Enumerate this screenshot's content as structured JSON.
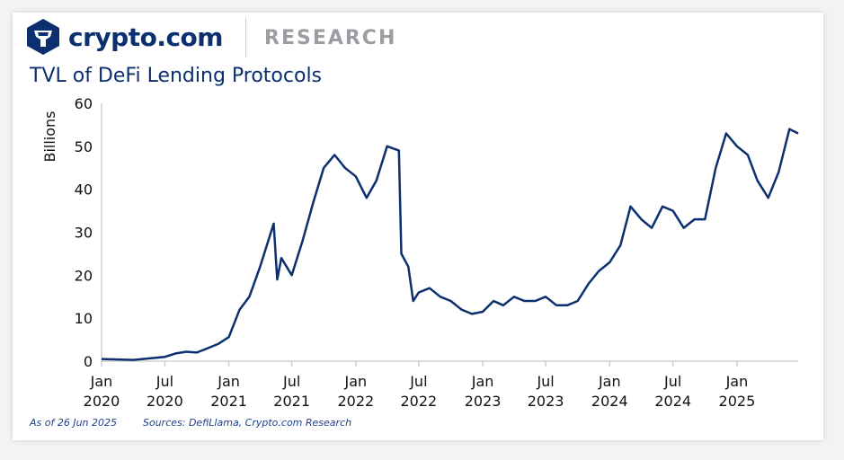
{
  "header": {
    "brand": "crypto.com",
    "section": "RESEARCH",
    "title": "TVL of DeFi Lending Protocols"
  },
  "footer": {
    "as_of": "As of 26 Jun 2025",
    "sources": "Sources: DefiLlama, Crypto.com Research"
  },
  "colors": {
    "line": "#0c2f6f",
    "brand": "#0c2f6f",
    "axis": "#d0d0d0"
  },
  "chart_data": {
    "type": "line",
    "title": "TVL of DeFi Lending Protocols",
    "ylabel": "Billions",
    "xlabel": "",
    "ylim": [
      0,
      60
    ],
    "yticks": [
      0,
      10,
      20,
      30,
      40,
      50,
      60
    ],
    "xlim": [
      "2020-01-01",
      "2025-06-26"
    ],
    "xticks": [
      {
        "date": "2020-01-01",
        "label": [
          "Jan",
          "2020"
        ]
      },
      {
        "date": "2020-07-01",
        "label": [
          "Jul",
          "2020"
        ]
      },
      {
        "date": "2021-01-01",
        "label": [
          "Jan",
          "2021"
        ]
      },
      {
        "date": "2021-07-01",
        "label": [
          "Jul",
          "2021"
        ]
      },
      {
        "date": "2022-01-01",
        "label": [
          "Jan",
          "2022"
        ]
      },
      {
        "date": "2022-07-01",
        "label": [
          "Jul",
          "2022"
        ]
      },
      {
        "date": "2023-01-01",
        "label": [
          "Jan",
          "2023"
        ]
      },
      {
        "date": "2023-07-01",
        "label": [
          "Jul",
          "2023"
        ]
      },
      {
        "date": "2024-01-01",
        "label": [
          "Jan",
          "2024"
        ]
      },
      {
        "date": "2024-07-01",
        "label": [
          "Jul",
          "2024"
        ]
      },
      {
        "date": "2025-01-01",
        "label": [
          "Jan",
          "2025"
        ]
      }
    ],
    "grid": false,
    "series": [
      {
        "x": [
          "2020-01-01",
          "2020-04-01",
          "2020-07-01",
          "2020-08-01",
          "2020-09-01",
          "2020-10-01",
          "2020-11-01",
          "2020-12-01",
          "2021-01-01",
          "2021-02-01",
          "2021-03-01",
          "2021-04-01",
          "2021-05-10",
          "2021-05-20",
          "2021-06-01",
          "2021-07-01",
          "2021-08-01",
          "2021-09-01",
          "2021-10-01",
          "2021-11-01",
          "2021-12-01",
          "2022-01-01",
          "2022-02-01",
          "2022-03-01",
          "2022-04-01",
          "2022-05-05",
          "2022-05-12",
          "2022-06-01",
          "2022-06-15",
          "2022-07-01",
          "2022-08-01",
          "2022-09-01",
          "2022-10-01",
          "2022-11-01",
          "2022-12-01",
          "2023-01-01",
          "2023-02-01",
          "2023-03-01",
          "2023-04-01",
          "2023-05-01",
          "2023-06-01",
          "2023-07-01",
          "2023-08-01",
          "2023-09-01",
          "2023-10-01",
          "2023-11-01",
          "2023-12-01",
          "2024-01-01",
          "2024-02-01",
          "2024-03-01",
          "2024-04-01",
          "2024-05-01",
          "2024-06-01",
          "2024-07-01",
          "2024-08-01",
          "2024-09-01",
          "2024-10-01",
          "2024-11-01",
          "2024-12-01",
          "2025-01-01",
          "2025-02-01",
          "2025-03-01",
          "2025-04-01",
          "2025-05-01",
          "2025-06-01",
          "2025-06-26"
        ],
        "y": [
          0.5,
          0.3,
          1,
          1.8,
          2.2,
          2,
          3,
          4,
          5.6,
          12,
          15,
          22,
          32,
          19,
          24,
          20,
          28,
          37,
          45,
          48,
          45,
          43,
          38,
          42,
          50,
          49,
          25,
          22,
          14,
          16,
          17,
          15,
          14,
          12,
          11,
          11.5,
          14,
          13,
          15,
          14,
          14,
          15,
          13,
          13,
          14,
          18,
          21,
          23,
          27,
          36,
          33,
          31,
          36,
          35,
          31,
          33,
          33,
          45,
          53,
          50,
          48,
          42,
          38,
          44,
          54,
          53
        ]
      }
    ]
  }
}
